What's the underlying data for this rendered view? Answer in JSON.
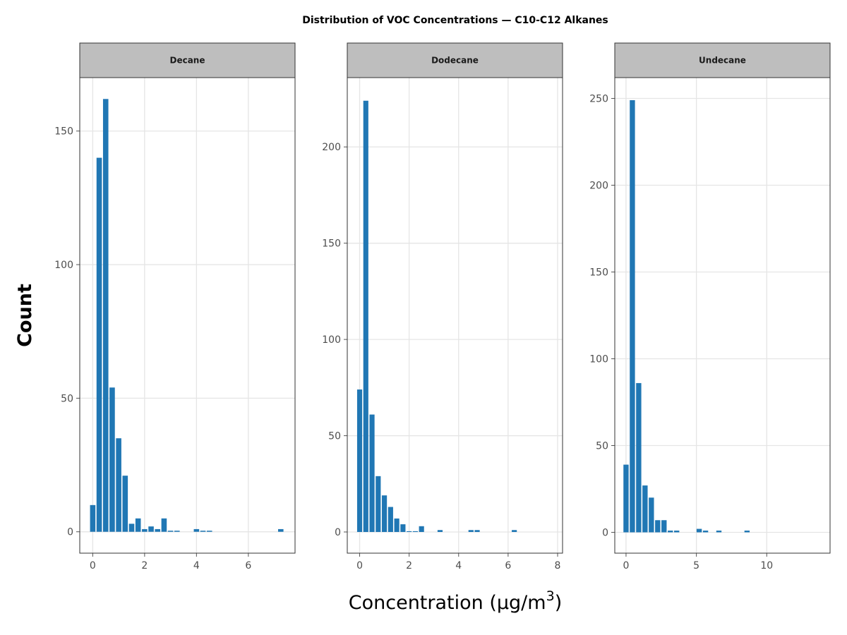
{
  "chart_data": {
    "type": "bar",
    "title": "Distribution of VOC Concentrations — C10-C12 Alkanes",
    "xlabel": "Concentration (μg/m",
    "xlabel_sup": "3",
    "xlabel_close": ")",
    "ylabel": "Count",
    "bar_color": "#2077b4",
    "strip_color": "#bebebe",
    "grid": true,
    "panels": [
      {
        "name": "Decane",
        "xlim": [
          -0.5,
          7.8
        ],
        "ylim": [
          -8,
          170
        ],
        "xticks": [
          0,
          2,
          4,
          6
        ],
        "yticks": [
          0,
          50,
          100,
          150
        ],
        "bin_width": 0.25,
        "x": [
          0,
          0.25,
          0.5,
          0.75,
          1.0,
          1.25,
          1.5,
          1.75,
          2.0,
          2.25,
          2.5,
          2.75,
          3.0,
          3.25,
          4.0,
          4.25,
          4.5,
          7.25
        ],
        "values": [
          10,
          140,
          162,
          54,
          35,
          21,
          3,
          5,
          1,
          2,
          1,
          5,
          0.4,
          0.4,
          1,
          0.4,
          0.4,
          1
        ]
      },
      {
        "name": "Dodecane",
        "xlim": [
          -0.5,
          8.2
        ],
        "ylim": [
          -11,
          236
        ],
        "xticks": [
          0,
          2,
          4,
          6,
          8
        ],
        "yticks": [
          0,
          50,
          100,
          150,
          200
        ],
        "bin_width": 0.25,
        "x": [
          0,
          0.25,
          0.5,
          0.75,
          1.0,
          1.25,
          1.5,
          1.75,
          2.0,
          2.25,
          2.5,
          3.25,
          4.5,
          4.75,
          6.25
        ],
        "values": [
          74,
          224,
          61,
          29,
          19,
          13,
          7,
          4,
          0.4,
          0.4,
          3,
          1,
          1,
          1,
          1
        ]
      },
      {
        "name": "Undecane",
        "xlim": [
          -0.8,
          14.5
        ],
        "ylim": [
          -12,
          262
        ],
        "xticks": [
          0,
          5,
          10
        ],
        "yticks": [
          0,
          50,
          100,
          150,
          200,
          250
        ],
        "bin_width": 0.45,
        "x": [
          0,
          0.45,
          0.9,
          1.35,
          1.8,
          2.25,
          2.7,
          3.15,
          3.6,
          5.2,
          5.65,
          6.6,
          8.6
        ],
        "values": [
          39,
          249,
          86,
          27,
          20,
          7,
          7,
          1,
          1,
          2,
          1,
          1,
          1
        ]
      }
    ]
  }
}
